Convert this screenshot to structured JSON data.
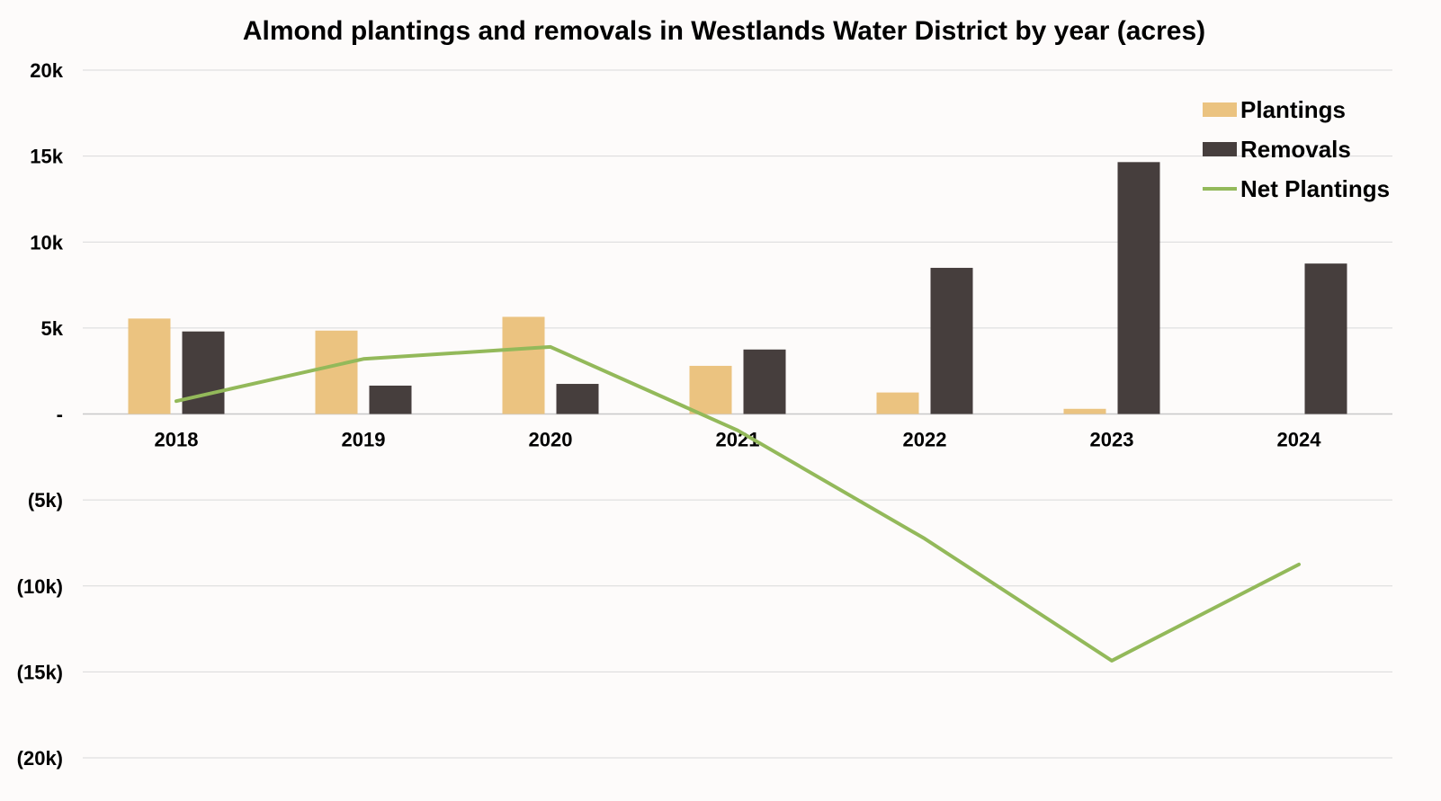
{
  "chart_data": {
    "type": "bar",
    "title": "Almond plantings and removals in Westlands Water District by year (acres)",
    "xlabel": "",
    "ylabel": "",
    "categories": [
      "2018",
      "2019",
      "2020",
      "2021",
      "2022",
      "2023",
      "2024"
    ],
    "ylim": [
      -20000,
      20000
    ],
    "y_ticks": [
      20000,
      15000,
      10000,
      5000,
      0,
      -5000,
      -10000,
      -15000,
      -20000
    ],
    "y_tick_labels": [
      "20k",
      "15k",
      "10k",
      "5k",
      "-",
      "(5k)",
      "(10k)",
      "(15k)",
      "(20k)"
    ],
    "grid": true,
    "legend_position": "top-right",
    "series": [
      {
        "name": "Plantings",
        "kind": "bar",
        "color": "#ebc380",
        "values": [
          5550,
          4850,
          5650,
          2800,
          1250,
          300,
          0
        ]
      },
      {
        "name": "Removals",
        "kind": "bar",
        "color": "#463e3d",
        "values": [
          4800,
          1650,
          1750,
          3750,
          8500,
          14650,
          8750
        ]
      },
      {
        "name": "Net Plantings",
        "kind": "line",
        "color": "#93b95a",
        "values": [
          750,
          3200,
          3900,
          -950,
          -7250,
          -14350,
          -8750
        ]
      }
    ]
  }
}
